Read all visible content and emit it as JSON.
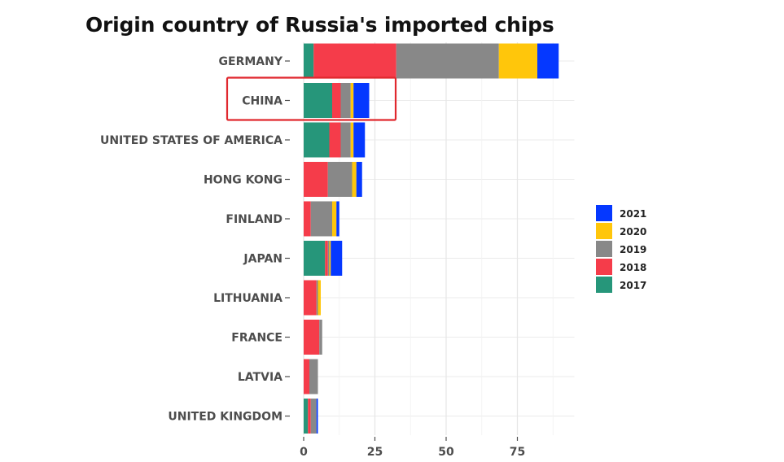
{
  "chart_data": {
    "type": "bar",
    "orientation": "horizontal",
    "stacked": true,
    "title": "Origin country of Russia's imported chips",
    "xlabel": "",
    "ylabel": "",
    "xlim": [
      0,
      95
    ],
    "x_ticks": [
      0,
      25,
      50,
      75
    ],
    "grid": true,
    "legend_position": "right",
    "categories": [
      "GERMANY",
      "CHINA",
      "UNITED STATES OF AMERICA",
      "HONG KONG",
      "FINLAND",
      "JAPAN",
      "LITHUANIA",
      "FRANCE",
      "LATVIA",
      "UNITED KINGDOM"
    ],
    "series": [
      {
        "name": "2017",
        "color": "#26967a",
        "values": [
          3.5,
          10,
          9,
          0,
          0,
          7.5,
          0,
          0,
          0,
          1.5
        ]
      },
      {
        "name": "2018",
        "color": "#f53c4a",
        "values": [
          29,
          3,
          4,
          8.5,
          2.5,
          1,
          4.5,
          5.5,
          2,
          1
        ]
      },
      {
        "name": "2019",
        "color": "#888888",
        "values": [
          36,
          3.5,
          3.5,
          8.5,
          7.5,
          0.5,
          0.5,
          1,
          3,
          2
        ]
      },
      {
        "name": "2020",
        "color": "#ffc60b",
        "values": [
          13.5,
          1,
          1,
          1.5,
          1.5,
          0.5,
          1,
          0,
          0,
          0
        ]
      },
      {
        "name": "2021",
        "color": "#0538ff",
        "values": [
          7.5,
          5.5,
          4,
          2,
          1,
          4,
          0,
          0,
          0,
          0.5
        ]
      }
    ],
    "legend_order": [
      "2021",
      "2020",
      "2019",
      "2018",
      "2017"
    ],
    "highlight": {
      "category": "CHINA",
      "color": "#e0282e"
    }
  }
}
